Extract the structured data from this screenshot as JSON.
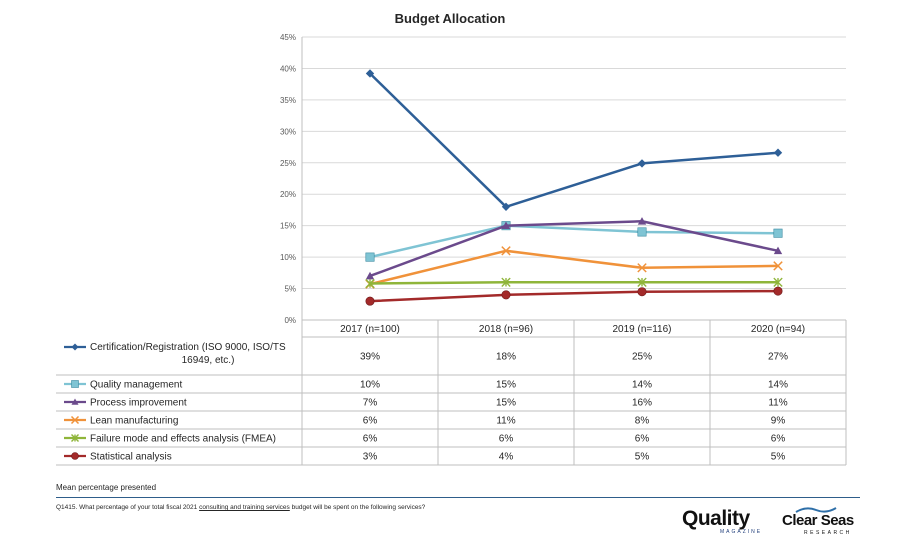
{
  "chart_data": {
    "type": "line",
    "title": "Budget Allocation",
    "categories": [
      "2017 (n=100)",
      "2018 (n=96)",
      "2019 (n=116)",
      "2020 (n=94)"
    ],
    "ylim": [
      0,
      45
    ],
    "yticks": [
      "0%",
      "5%",
      "10%",
      "15%",
      "20%",
      "25%",
      "30%",
      "35%",
      "40%",
      "45%"
    ],
    "grid": true,
    "legend_placement": "left (data table)",
    "series": [
      {
        "name": "Certification/Registration (ISO 9000, ISO/TS 16949, etc.)",
        "name_lines": [
          "Certification/Registration (ISO 9000, ISO/TS",
          "16949, etc.)"
        ],
        "color": "#2e5f97",
        "marker": "diamond",
        "values": [
          39.2,
          18.0,
          24.9,
          26.6
        ],
        "labels": [
          "39%",
          "18%",
          "25%",
          "27%"
        ]
      },
      {
        "name": "Quality management",
        "color": "#7fc4d4",
        "marker": "square",
        "values": [
          10.0,
          15.0,
          14.0,
          13.8
        ],
        "labels": [
          "10%",
          "15%",
          "14%",
          "14%"
        ]
      },
      {
        "name": "Process improvement",
        "color": "#6b4a8c",
        "marker": "triangle",
        "values": [
          7.0,
          15.0,
          15.7,
          11.0
        ],
        "labels": [
          "7%",
          "15%",
          "16%",
          "11%"
        ]
      },
      {
        "name": "Lean manufacturing",
        "color": "#f0923a",
        "marker": "x",
        "values": [
          5.7,
          11.0,
          8.3,
          8.6
        ],
        "labels": [
          "6%",
          "11%",
          "8%",
          "9%"
        ]
      },
      {
        "name": "Failure mode and effects analysis (FMEA)",
        "color": "#8fb53a",
        "marker": "star",
        "values": [
          5.8,
          6.0,
          6.0,
          6.0
        ],
        "labels": [
          "6%",
          "6%",
          "6%",
          "6%"
        ]
      },
      {
        "name": "Statistical analysis",
        "color": "#a32a2a",
        "marker": "circle",
        "values": [
          3.0,
          4.0,
          4.5,
          4.6
        ],
        "labels": [
          "3%",
          "4%",
          "5%",
          "5%"
        ]
      }
    ]
  },
  "footer": {
    "note": "Mean percentage presented",
    "question_prefix": "Q1415. What percentage of your total fiscal 2021 ",
    "question_underlined": "consulting and training services",
    "question_suffix": " budget will be spent on the following services?"
  },
  "logos": {
    "quality_main": "Quality",
    "quality_sub": "MAGAZINE",
    "clear_main": "Clear Seas",
    "clear_sub": "RESEARCH"
  }
}
